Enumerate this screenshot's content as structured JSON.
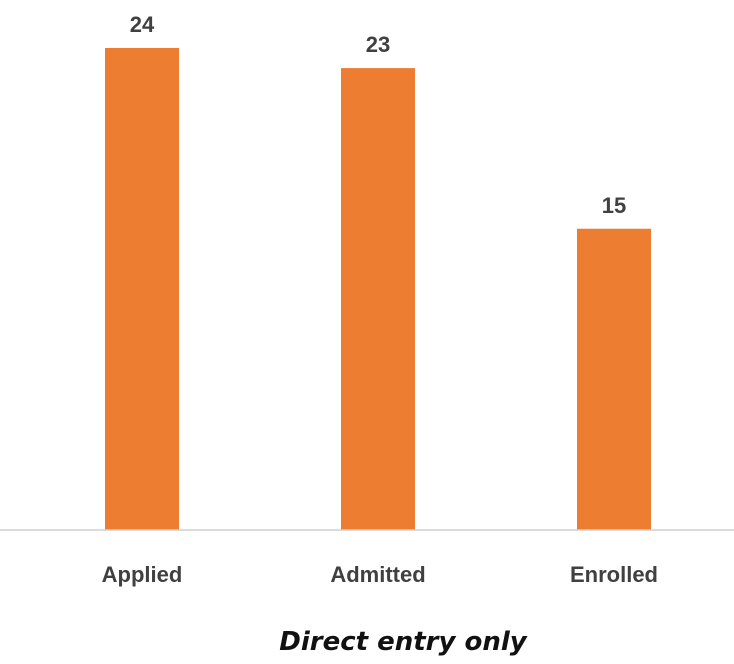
{
  "chart_data": {
    "type": "bar",
    "categories": [
      "Applied",
      "Admitted",
      "Enrolled"
    ],
    "values": [
      24,
      23,
      15
    ],
    "title": "Direct entry only",
    "xlabel": "",
    "ylabel": "",
    "ylim": [
      0,
      24
    ],
    "grid": false,
    "legend": "none",
    "bar_color": "#ED7D31",
    "axis_color": "#D0D0D0",
    "label_color": "#404040",
    "title_color": "#111111"
  }
}
